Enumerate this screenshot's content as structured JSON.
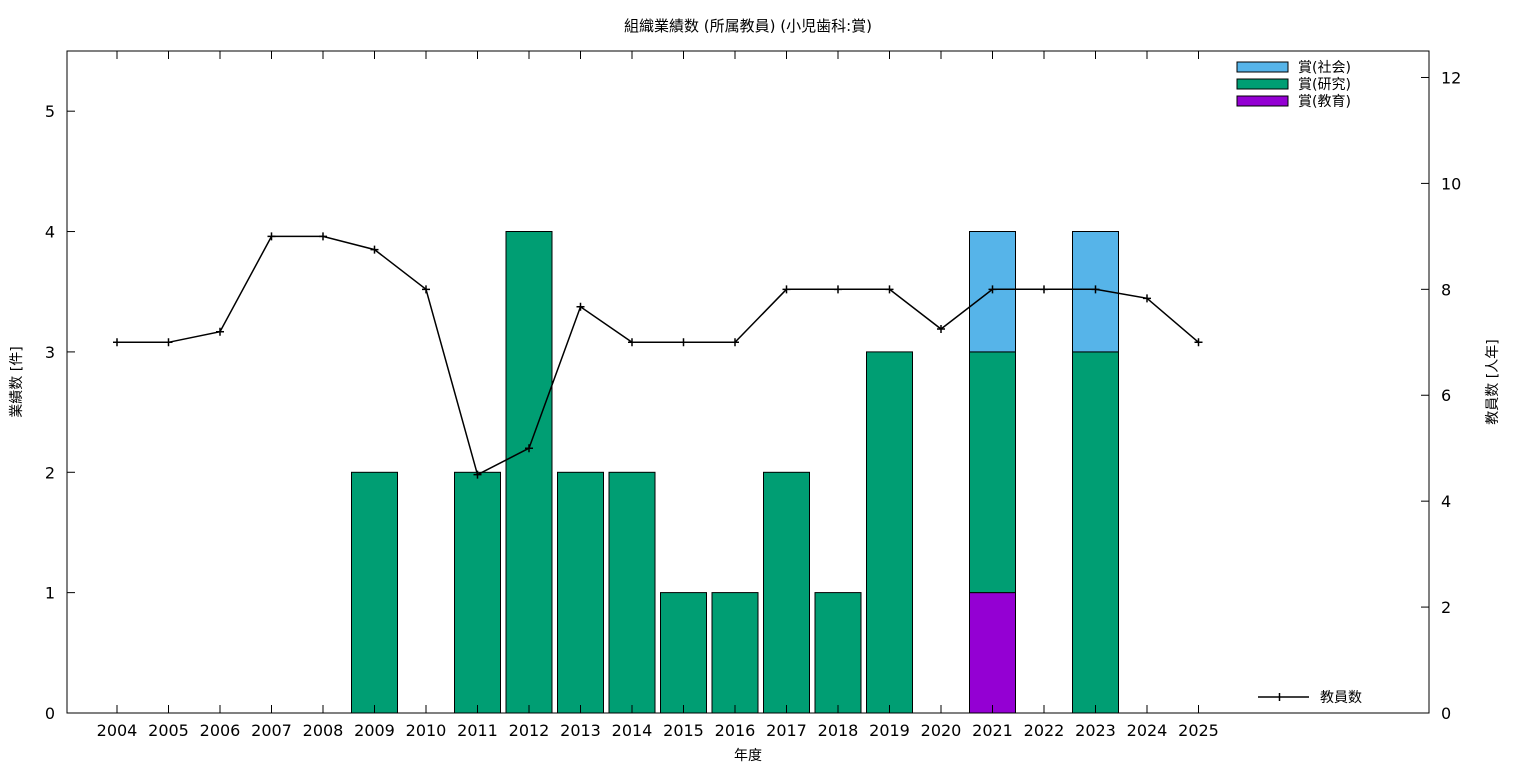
{
  "chart_data": {
    "type": "bar",
    "title": "組織業績数 (所属教員) (小児歯科:賞)",
    "xlabel": "年度",
    "ylabel": "業績数 [件]",
    "y2label": "教員数 [人年]",
    "categories": [
      "2004",
      "2005",
      "2006",
      "2007",
      "2008",
      "2009",
      "2010",
      "2011",
      "2012",
      "2013",
      "2014",
      "2015",
      "2016",
      "2017",
      "2018",
      "2019",
      "2020",
      "2021",
      "2022",
      "2023",
      "2024",
      "2025"
    ],
    "ylim": [
      0,
      5.5
    ],
    "y2lim": [
      0,
      12.5
    ],
    "yticks": [
      "0",
      "1",
      "2",
      "3",
      "4",
      "5"
    ],
    "y2ticks": [
      "0",
      "2",
      "4",
      "6",
      "8",
      "10",
      "12"
    ],
    "stacked": true,
    "series": [
      {
        "name": "賞(教育)",
        "color": "#9400d3",
        "values": [
          0,
          0,
          0,
          0,
          0,
          0,
          0,
          0,
          0,
          0,
          0,
          0,
          0,
          0,
          0,
          0,
          0,
          1,
          0,
          0,
          0,
          0
        ]
      },
      {
        "name": "賞(研究)",
        "color": "#009e73",
        "values": [
          0,
          0,
          0,
          0,
          0,
          2,
          0,
          2,
          4,
          2,
          2,
          1,
          1,
          2,
          1,
          3,
          0,
          2,
          0,
          3,
          0,
          0
        ]
      },
      {
        "name": "賞(社会)",
        "color": "#56b4e9",
        "values": [
          0,
          0,
          0,
          0,
          0,
          0,
          0,
          0,
          0,
          0,
          0,
          0,
          0,
          0,
          0,
          0,
          0,
          1,
          0,
          1,
          0,
          0
        ]
      }
    ],
    "line_series": {
      "name": "教員数",
      "color": "#000000",
      "axis": "right",
      "values": [
        7,
        7,
        7.2,
        9,
        9,
        8.75,
        8,
        4.5,
        5,
        7.67,
        7,
        7,
        7,
        8,
        8,
        8,
        7.25,
        8,
        8,
        8,
        7.83,
        7
      ]
    },
    "legend_order": [
      "賞(社会)",
      "賞(研究)",
      "賞(教育)"
    ],
    "legend_position": "top-right",
    "line_legend_position": "bottom-right",
    "grid": false
  }
}
